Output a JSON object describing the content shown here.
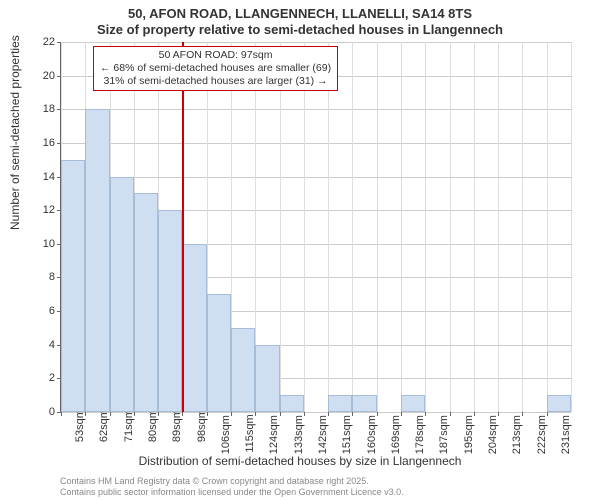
{
  "chart": {
    "type": "histogram",
    "title_main": "50, AFON ROAD, LLANGENNECH, LLANELLI, SA14 8TS",
    "title_sub": "Size of property relative to semi-detached houses in Llangennech",
    "x_label": "Distribution of semi-detached houses by size in Llangennech",
    "y_label": "Number of semi-detached properties",
    "title_fontsize": 13,
    "label_fontsize": 12,
    "tick_fontsize": 11,
    "plot_bg": "#ffffff",
    "bar_fill": "#cfdef0",
    "bar_edge": "#a7bcd6",
    "grid_color": "#cccccc",
    "axis_color": "#666666",
    "y": {
      "min": 0,
      "max": 22,
      "tick_step": 2,
      "ticks": [
        "0",
        "2",
        "4",
        "6",
        "8",
        "10",
        "12",
        "14",
        "16",
        "18",
        "20",
        "22"
      ]
    },
    "x": {
      "ticks": [
        "53sqm",
        "62sqm",
        "71sqm",
        "80sqm",
        "89sqm",
        "98sqm",
        "106sqm",
        "115sqm",
        "124sqm",
        "133sqm",
        "142sqm",
        "151sqm",
        "160sqm",
        "169sqm",
        "178sqm",
        "187sqm",
        "195sqm",
        "204sqm",
        "213sqm",
        "222sqm",
        "231sqm"
      ]
    },
    "bars": [
      15,
      18,
      14,
      13,
      12,
      10,
      7,
      5,
      4,
      1,
      0,
      1,
      1,
      0,
      1,
      0,
      0,
      0,
      0,
      0,
      1
    ],
    "reference": {
      "color": "#cc0000",
      "bin_index": 5,
      "anno_line1": "50 AFON ROAD: 97sqm",
      "anno_line2": "← 68% of semi-detached houses are smaller (69)",
      "anno_line3": "31% of semi-detached houses are larger (31) →"
    },
    "footer_line1": "Contains HM Land Registry data © Crown copyright and database right 2025.",
    "footer_line2": "Contains public sector information licensed under the Open Government Licence v3.0."
  }
}
